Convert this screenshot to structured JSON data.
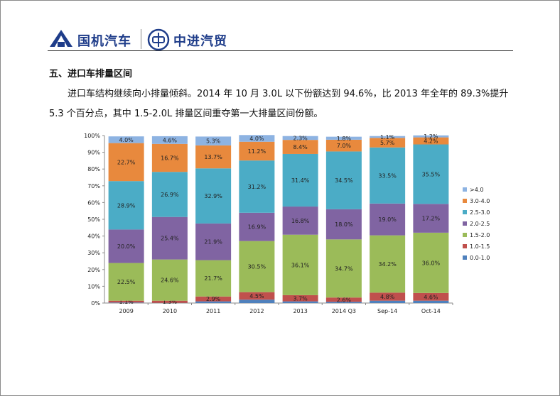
{
  "header": {
    "brand1": "国机汽车",
    "brand2": "中进汽贸"
  },
  "section": {
    "title": "五、进口车排量区间",
    "paragraph": "进口车结构继续向小排量倾斜。2014 年 10 月 3.0L 以下份额达到 94.6%，比 2013 年全年的 89.3%提升 5.3 个百分点，其中 1.5-2.0L 排量区间重夺第一大排量区间份额。"
  },
  "colors": {
    "brand": "#1f3d8a"
  },
  "chart_data": {
    "type": "bar",
    "stacked": true,
    "percent": true,
    "categories": [
      "2009",
      "2010",
      "2011",
      "2012",
      "2013",
      "2014 Q3",
      "Sep-14",
      "Oct-14"
    ],
    "ylim": [
      0,
      100
    ],
    "yticks": [
      "0%",
      "10%",
      "20%",
      "30%",
      "40%",
      "50%",
      "60%",
      "70%",
      "80%",
      "90%",
      "100%"
    ],
    "legend_position": "right",
    "series": [
      {
        "name": "0.0-1.0",
        "color": "#4f81bd",
        "values": [
          0.3,
          0.1,
          1.0,
          2.0,
          1.0,
          0.7,
          1.4,
          1.4
        ],
        "labels": [
          "",
          "",
          "",
          "",
          "",
          "",
          "",
          ""
        ]
      },
      {
        "name": "1.0-1.5",
        "color": "#c0504d",
        "values": [
          1.1,
          1.3,
          2.9,
          4.5,
          3.7,
          2.6,
          4.8,
          4.6
        ],
        "labels": [
          "1.1%",
          "1.3%",
          "2.9%",
          "4.5%",
          "3.7%",
          "2.6%",
          "4.8%",
          "4.6%"
        ]
      },
      {
        "name": "1.5-2.0",
        "color": "#9bbb59",
        "values": [
          22.5,
          24.6,
          21.7,
          30.5,
          36.1,
          34.7,
          34.2,
          36.0
        ],
        "labels": [
          "22.5%",
          "24.6%",
          "21.7%",
          "30.5%",
          "36.1%",
          "34.7%",
          "34.2%",
          "36.0%"
        ]
      },
      {
        "name": "2.0-2.5",
        "color": "#8064a2",
        "values": [
          20.0,
          25.4,
          21.9,
          16.9,
          16.8,
          18.0,
          19.0,
          17.2
        ],
        "labels": [
          "20.0%",
          "25.4%",
          "21.9%",
          "16.9%",
          "16.8%",
          "18.0%",
          "19.0%",
          "17.2%"
        ]
      },
      {
        "name": "2.5-3.0",
        "color": "#4bacc6",
        "values": [
          28.9,
          26.9,
          32.9,
          31.2,
          31.4,
          34.5,
          33.5,
          35.5
        ],
        "labels": [
          "28.9%",
          "26.9%",
          "32.9%",
          "31.2%",
          "31.4%",
          "34.5%",
          "33.5%",
          "35.5%"
        ]
      },
      {
        "name": "3.0-4.0",
        "color": "#e8893d",
        "values": [
          22.7,
          16.7,
          13.7,
          11.2,
          8.4,
          7.0,
          5.7,
          4.2
        ],
        "labels": [
          "22.7%",
          "16.7%",
          "13.7%",
          "11.2%",
          "8.4%",
          "7.0%",
          "5.7%",
          "4.2%"
        ]
      },
      {
        "name": ">4.0",
        "color": "#8db3e2",
        "values": [
          4.0,
          4.6,
          5.3,
          4.0,
          2.3,
          1.8,
          1.1,
          1.2
        ],
        "labels": [
          "4.0%",
          "4.6%",
          "5.3%",
          "4.0%",
          "2.3%",
          "1.8%",
          "1.1%",
          "1.2%"
        ]
      }
    ]
  }
}
